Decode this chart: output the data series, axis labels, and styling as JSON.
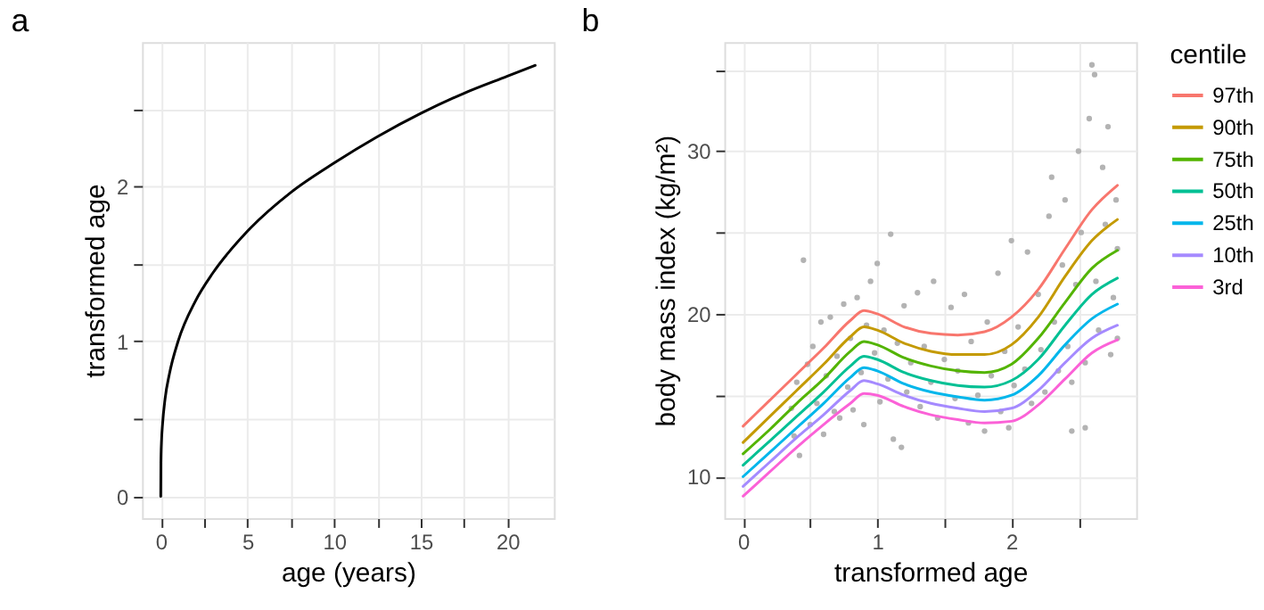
{
  "chart_data": [
    {
      "type": "line",
      "title": "a",
      "xlabel": "age (years)",
      "ylabel": "transformed age",
      "grid": true,
      "marker": "none",
      "line_style": "solid",
      "xlim": [
        -1.08,
        22.68
      ],
      "ylim": [
        -0.14,
        2.93
      ],
      "xticks": [
        0,
        {
          "value": 2.5,
          "label": null
        },
        5,
        {
          "value": 7.5,
          "label": null
        },
        10,
        {
          "value": 12.5,
          "label": null
        },
        15,
        {
          "value": 17.5,
          "label": null
        },
        20
      ],
      "yticks": [
        0,
        {
          "value": 0.5,
          "label": null
        },
        1,
        {
          "value": 1.5,
          "label": null
        },
        2,
        {
          "value": 2.5,
          "label": null
        }
      ],
      "x": [
        0,
        0.01,
        0.05,
        0.1,
        0.25,
        0.5,
        1,
        2,
        3,
        5,
        7.5,
        10,
        12.5,
        15,
        17.5,
        20,
        21.6
      ],
      "series": [
        {
          "color": "#000000",
          "values": [
            0,
            0.22,
            0.37,
            0.46,
            0.63,
            0.79,
            1.0,
            1.26,
            1.44,
            1.71,
            1.96,
            2.15,
            2.32,
            2.47,
            2.6,
            2.71,
            2.78
          ]
        }
      ]
    },
    {
      "type": "line",
      "title": "b",
      "xlabel": "transformed age",
      "ylabel": "body mass index (kg/m²)",
      "legend_title": "centile",
      "legend": "right",
      "grid": true,
      "marker": "none",
      "line_style": "solid",
      "xlim": [
        -0.14,
        2.93
      ],
      "ylim": [
        7.45,
        36.7
      ],
      "xticks": [
        0,
        {
          "value": 0.5,
          "label": null
        },
        1,
        {
          "value": 1.5,
          "label": null
        },
        2,
        {
          "value": 2.5,
          "label": null
        }
      ],
      "yticks": [
        10,
        {
          "value": 15,
          "label": null
        },
        20,
        {
          "value": 25,
          "label": null
        },
        30,
        {
          "value": 35,
          "label": null
        }
      ],
      "x": [
        0,
        0.2,
        0.4,
        0.6,
        0.8,
        0.9,
        1.0,
        1.2,
        1.4,
        1.6,
        1.8,
        2.0,
        2.2,
        2.4,
        2.6,
        2.79
      ],
      "series": [
        {
          "type": "scatter",
          "color": "#b3b3b3",
          "x": [
            0.36,
            0.38,
            0.4,
            0.42,
            0.45,
            0.48,
            0.5,
            0.52,
            0.55,
            0.58,
            0.6,
            0.62,
            0.65,
            0.68,
            0.7,
            0.72,
            0.75,
            0.78,
            0.8,
            0.82,
            0.85,
            0.88,
            0.9,
            0.92,
            0.95,
            0.98,
            1.0,
            1.02,
            1.05,
            1.08,
            1.1,
            1.12,
            1.15,
            1.18,
            1.2,
            1.22,
            1.25,
            1.3,
            1.32,
            1.35,
            1.4,
            1.42,
            1.45,
            1.5,
            1.55,
            1.58,
            1.6,
            1.65,
            1.68,
            1.7,
            1.75,
            1.8,
            1.82,
            1.85,
            1.9,
            1.92,
            1.95,
            1.98,
            2.0,
            2.02,
            2.05,
            2.1,
            2.12,
            2.15,
            2.2,
            2.22,
            2.25,
            2.28,
            2.3,
            2.32,
            2.35,
            2.38,
            2.4,
            2.42,
            2.45,
            2.48,
            2.5,
            2.52,
            2.55,
            2.58,
            2.6,
            2.62,
            2.63,
            2.65,
            2.68,
            2.7,
            2.72,
            2.74,
            2.76,
            2.78,
            2.79,
            2.79,
            2.55,
            2.45
          ],
          "values": [
            14.2,
            12.5,
            15.8,
            11.3,
            23.3,
            16.9,
            13.2,
            18.0,
            14.5,
            19.5,
            12.6,
            16.2,
            19.8,
            14.0,
            17.4,
            13.6,
            20.6,
            15.5,
            18.5,
            14.1,
            21.0,
            16.4,
            13.2,
            19.3,
            22.0,
            17.6,
            23.1,
            14.6,
            19.0,
            16.0,
            24.9,
            12.3,
            18.2,
            11.8,
            20.5,
            15.2,
            17.0,
            21.3,
            14.3,
            18.0,
            15.8,
            22.0,
            13.6,
            17.2,
            20.4,
            14.8,
            16.5,
            21.2,
            13.3,
            18.3,
            15.0,
            12.8,
            19.5,
            16.2,
            22.5,
            14.0,
            17.7,
            13.0,
            24.5,
            15.6,
            19.2,
            16.6,
            23.8,
            14.5,
            21.2,
            17.8,
            15.2,
            26.0,
            28.4,
            19.5,
            16.5,
            23.0,
            27.0,
            18.0,
            15.8,
            21.8,
            30.0,
            25.0,
            17.0,
            32.0,
            35.3,
            34.7,
            22.0,
            19.0,
            29.0,
            25.5,
            31.5,
            17.5,
            21.0,
            27.0,
            24.0,
            18.5,
            13.0,
            12.8
          ]
        },
        {
          "name": "97th",
          "color": "#f8766d",
          "values": [
            13.1,
            14.7,
            16.3,
            17.9,
            19.6,
            20.2,
            20.0,
            19.2,
            18.8,
            18.7,
            18.9,
            19.8,
            21.5,
            24.0,
            26.4,
            27.9
          ]
        },
        {
          "name": "90th",
          "color": "#c49a00",
          "values": [
            12.1,
            13.7,
            15.3,
            16.9,
            18.6,
            19.2,
            19.0,
            18.2,
            17.7,
            17.5,
            17.5,
            18.1,
            19.8,
            22.3,
            24.5,
            25.8
          ]
        },
        {
          "name": "75th",
          "color": "#53b400",
          "values": [
            11.4,
            12.9,
            14.5,
            16.0,
            17.7,
            18.3,
            18.1,
            17.3,
            16.8,
            16.5,
            16.4,
            16.9,
            18.5,
            20.7,
            22.8,
            23.9
          ]
        },
        {
          "name": "50th",
          "color": "#00c094",
          "values": [
            10.7,
            12.2,
            13.7,
            15.2,
            16.8,
            17.4,
            17.2,
            16.4,
            15.9,
            15.6,
            15.5,
            15.9,
            17.2,
            19.3,
            21.2,
            22.2
          ]
        },
        {
          "name": "25th",
          "color": "#00b6eb",
          "values": [
            10.0,
            11.5,
            13.0,
            14.5,
            16.1,
            16.7,
            16.5,
            15.7,
            15.2,
            14.9,
            14.7,
            15.0,
            16.2,
            18.1,
            19.7,
            20.6
          ]
        },
        {
          "name": "10th",
          "color": "#a58aff",
          "values": [
            9.4,
            10.9,
            12.4,
            13.8,
            15.3,
            15.9,
            15.7,
            15.0,
            14.5,
            14.2,
            14.0,
            14.2,
            15.3,
            17.0,
            18.5,
            19.3
          ]
        },
        {
          "name": "3rd",
          "color": "#fb61d7",
          "values": [
            8.8,
            10.3,
            11.8,
            13.2,
            14.5,
            15.1,
            15.0,
            14.3,
            13.8,
            13.5,
            13.3,
            13.4,
            14.4,
            16.0,
            17.6,
            18.4
          ]
        }
      ]
    }
  ]
}
